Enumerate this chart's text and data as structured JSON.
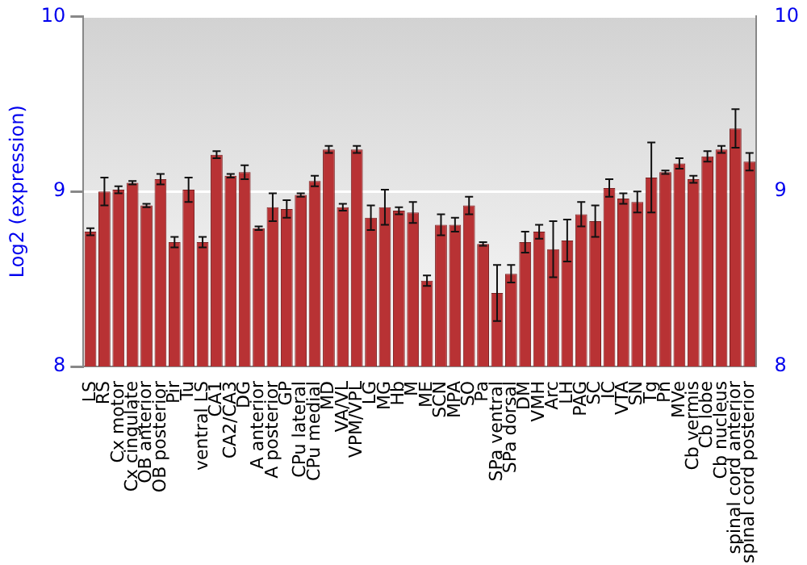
{
  "chart_data": {
    "type": "bar",
    "ylabel": "Log2 (expression)",
    "categories": [
      "LS",
      "RS",
      "Cx motor",
      "Cx cingulate",
      "OB anterior",
      "OB posterior",
      "Pir",
      "Tu",
      "ventral LS",
      "CA1",
      "CA2/CA3",
      "DG",
      "A anterior",
      "A posterior",
      "GP",
      "CPu lateral",
      "CPu medial",
      "MD",
      "VA/VL",
      "VPM/VPL",
      "LG",
      "MG",
      "Hb",
      "M",
      "ME",
      "SCN",
      "MPA",
      "SO",
      "Pa",
      "SPa ventral",
      "SPa dorsal",
      "DM",
      "VMH",
      "Arc",
      "LH",
      "PAG",
      "SC",
      "IC",
      "VTA",
      "SN",
      "Tg",
      "Pn",
      "MVe",
      "Cb vermis",
      "Cb lobe",
      "Cb nucleus",
      "spinal cord anterior",
      "spinal cord posterior"
    ],
    "values": [
      8.77,
      9.0,
      9.01,
      9.05,
      8.92,
      9.07,
      8.71,
      9.01,
      8.71,
      9.21,
      9.09,
      9.11,
      8.79,
      8.91,
      8.9,
      8.98,
      9.06,
      9.24,
      8.91,
      9.24,
      8.85,
      8.91,
      8.89,
      8.88,
      8.49,
      8.81,
      8.81,
      8.92,
      8.7,
      8.42,
      8.53,
      8.71,
      8.77,
      8.67,
      8.72,
      8.87,
      8.83,
      9.02,
      8.96,
      8.94,
      9.08,
      9.11,
      9.16,
      9.07,
      9.2,
      9.24,
      9.36,
      9.17
    ],
    "errors": [
      0.02,
      0.08,
      0.02,
      0.01,
      0.01,
      0.03,
      0.03,
      0.07,
      0.03,
      0.02,
      0.01,
      0.04,
      0.01,
      0.08,
      0.05,
      0.01,
      0.03,
      0.02,
      0.02,
      0.02,
      0.07,
      0.1,
      0.02,
      0.06,
      0.03,
      0.06,
      0.04,
      0.05,
      0.01,
      0.16,
      0.05,
      0.06,
      0.04,
      0.16,
      0.12,
      0.07,
      0.09,
      0.05,
      0.03,
      0.06,
      0.2,
      0.01,
      0.03,
      0.02,
      0.03,
      0.02,
      0.11,
      0.05
    ],
    "color": "#b83234",
    "ylim": [
      8,
      10
    ],
    "yticks": [
      8,
      9,
      10
    ],
    "y2lim": [
      8,
      10
    ],
    "y2ticks": [
      8,
      9,
      10
    ],
    "grid": "y",
    "legend": false
  }
}
